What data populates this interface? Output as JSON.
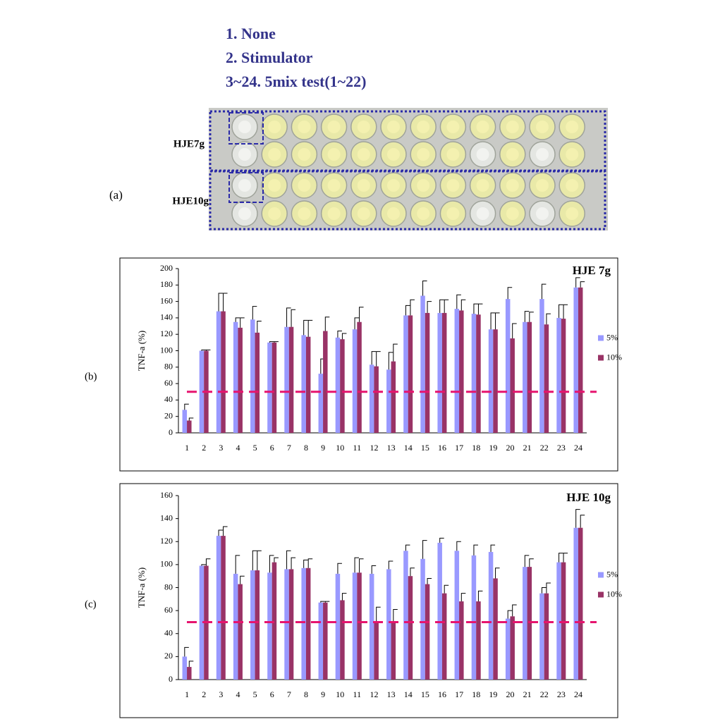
{
  "figure": {
    "legend_lines": [
      "1.   None",
      "2.   Stimulator",
      "3~24. 5mix test(1~22)"
    ],
    "panel_labels": [
      "(a)",
      "(b)",
      "(c)"
    ],
    "plate_row_labels": [
      "HJE7g",
      "HJE10g"
    ]
  },
  "chart_data": [
    {
      "type": "bar",
      "title": "HJE 7g",
      "ylabel": "TNF-a (%)",
      "categories": [
        "1",
        "2",
        "3",
        "4",
        "5",
        "6",
        "7",
        "8",
        "9",
        "10",
        "11",
        "12",
        "13",
        "14",
        "15",
        "16",
        "17",
        "18",
        "19",
        "20",
        "21",
        "22",
        "23",
        "24"
      ],
      "series": [
        {
          "name": "5%",
          "color": "#9999ff",
          "values": [
            28,
            100,
            148,
            135,
            138,
            110,
            129,
            119,
            72,
            116,
            126,
            83,
            77,
            143,
            167,
            146,
            151,
            145,
            126,
            163,
            135,
            163,
            140,
            177
          ],
          "errors": [
            7,
            1,
            22,
            5,
            16,
            1,
            23,
            18,
            18,
            8,
            14,
            16,
            21,
            12,
            18,
            16,
            17,
            12,
            20,
            14,
            13,
            18,
            16,
            12
          ]
        },
        {
          "name": "10%",
          "color": "#993366",
          "values": [
            15,
            100,
            148,
            128,
            122,
            110,
            129,
            117,
            124,
            114,
            135,
            81,
            87,
            143,
            146,
            146,
            149,
            144,
            126,
            115,
            135,
            132,
            139,
            177
          ],
          "errors": [
            3,
            1,
            22,
            12,
            14,
            1,
            21,
            20,
            17,
            7,
            18,
            18,
            21,
            19,
            14,
            16,
            13,
            13,
            20,
            18,
            12,
            13,
            17,
            7
          ]
        }
      ],
      "ylim": [
        0,
        200
      ],
      "yticks": [
        0,
        20,
        40,
        60,
        80,
        100,
        120,
        140,
        160,
        180,
        200
      ],
      "reference_line": {
        "value": 50,
        "color": "#e6146e"
      },
      "legend": "right"
    },
    {
      "type": "bar",
      "title": "HJE 10g",
      "ylabel": "TNF-a (%)",
      "categories": [
        "1",
        "2",
        "3",
        "4",
        "5",
        "6",
        "7",
        "8",
        "9",
        "10",
        "11",
        "12",
        "13",
        "14",
        "15",
        "16",
        "17",
        "18",
        "19",
        "20",
        "21",
        "22",
        "23",
        "24"
      ],
      "series": [
        {
          "name": "5%",
          "color": "#9999ff",
          "values": [
            20,
            99,
            125,
            92,
            95,
            93,
            96,
            97,
            67,
            92,
            93,
            92,
            96,
            112,
            105,
            119,
            112,
            108,
            111,
            53,
            98,
            75,
            102,
            132
          ],
          "errors": [
            8,
            1,
            5,
            16,
            17,
            15,
            16,
            7,
            1,
            9,
            13,
            7,
            7,
            5,
            16,
            4,
            8,
            9,
            6,
            7,
            10,
            5,
            8,
            16
          ]
        },
        {
          "name": "10%",
          "color": "#993366",
          "values": [
            11,
            99,
            125,
            83,
            95,
            102,
            96,
            97,
            67,
            69,
            93,
            50,
            50,
            90,
            83,
            75,
            68,
            68,
            88,
            55,
            98,
            75,
            102,
            132
          ],
          "errors": [
            5,
            6,
            8,
            7,
            17,
            4,
            10,
            8,
            1,
            6,
            12,
            13,
            11,
            7,
            5,
            7,
            7,
            9,
            9,
            10,
            7,
            9,
            8,
            11
          ]
        }
      ],
      "ylim": [
        0,
        160
      ],
      "yticks": [
        0,
        20,
        40,
        60,
        80,
        100,
        120,
        140,
        160
      ],
      "reference_line": {
        "value": 50,
        "color": "#e6146e"
      },
      "legend": "right"
    }
  ]
}
